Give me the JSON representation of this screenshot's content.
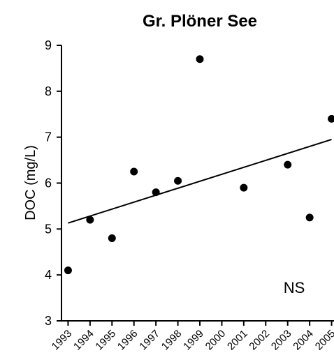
{
  "chart_data": {
    "type": "scatter",
    "title": "Gr. Plöner See",
    "xlabel": "",
    "ylabel": "DOC (mg/L)",
    "x_tick_labels": [
      "1993",
      "1994",
      "1995",
      "1996",
      "1997",
      "1998",
      "1999",
      "2000",
      "2001",
      "2002",
      "2003",
      "2004",
      "2005"
    ],
    "xlim": [
      1992.7,
      2005.3
    ],
    "ylim": [
      3,
      9
    ],
    "y_ticks": [
      3,
      4,
      5,
      6,
      7,
      8,
      9
    ],
    "grid": false,
    "points": [
      {
        "x": 1993,
        "y": 4.1
      },
      {
        "x": 1994,
        "y": 5.2
      },
      {
        "x": 1995,
        "y": 4.8
      },
      {
        "x": 1996,
        "y": 6.25
      },
      {
        "x": 1997,
        "y": 5.8
      },
      {
        "x": 1998,
        "y": 6.05
      },
      {
        "x": 1999,
        "y": 8.7
      },
      {
        "x": 2001,
        "y": 5.9
      },
      {
        "x": 2003,
        "y": 6.4
      },
      {
        "x": 2004,
        "y": 5.25
      },
      {
        "x": 2005,
        "y": 7.4
      }
    ],
    "trendline": {
      "x": [
        1993,
        2005
      ],
      "y": [
        5.13,
        6.95
      ]
    },
    "annotation": "NS"
  }
}
